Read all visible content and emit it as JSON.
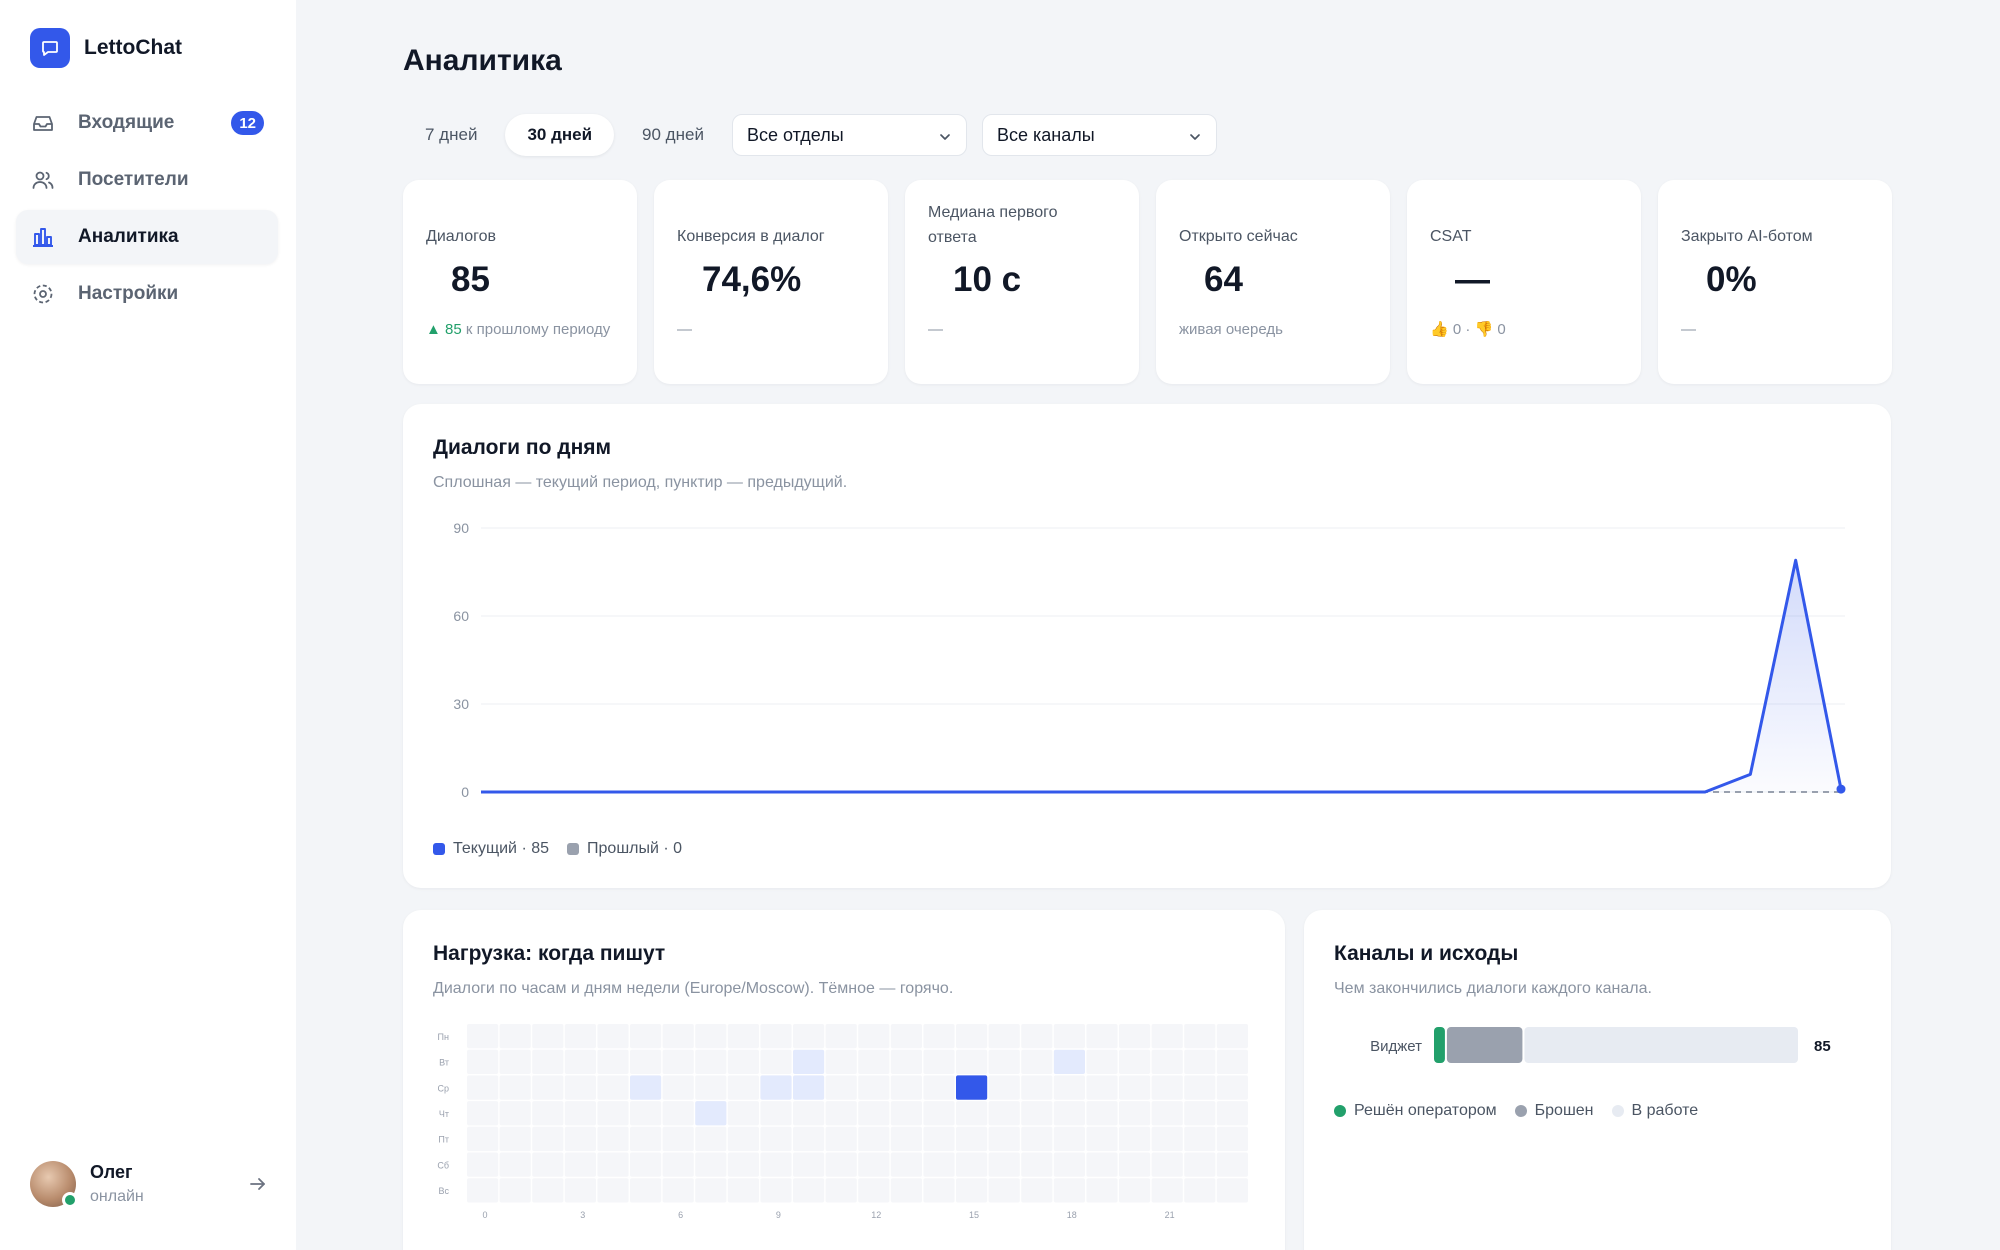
{
  "app": {
    "name": "LettoChat"
  },
  "nav": {
    "items": [
      {
        "label": "Входящие",
        "icon": "inbox-icon",
        "badge": "12"
      },
      {
        "label": "Посетители",
        "icon": "users-icon"
      },
      {
        "label": "Аналитика",
        "icon": "bar-chart-icon",
        "active": true
      },
      {
        "label": "Настройки",
        "icon": "gear-icon"
      }
    ]
  },
  "user": {
    "name": "Олег",
    "status": "онлайн"
  },
  "page": {
    "title": "Аналитика"
  },
  "filters": {
    "periods": [
      "7 дней",
      "30 дней",
      "90 дней"
    ],
    "active_period": "30 дней",
    "department": "Все отделы",
    "channel": "Все каналы"
  },
  "kpis": [
    {
      "label": "Диалогов",
      "value": "85",
      "note_up": "▲ 85",
      "note": " к прошлому периоду"
    },
    {
      "label": "Конверсия в диалог",
      "value": "74,6%",
      "note": "—"
    },
    {
      "label": "Медиана первого ответа",
      "value": "10 с",
      "note": "—"
    },
    {
      "label": "Открыто сейчас",
      "value": "64",
      "note": "живая очередь"
    },
    {
      "label": "CSAT",
      "value": "—",
      "note": "👍 0 · 👎 0"
    },
    {
      "label": "Закрыто AI-ботом",
      "value": "0%",
      "note": "—"
    }
  ],
  "daily": {
    "title": "Диалоги по дням",
    "subtitle": "Сплошная — текущий период, пунктир — предыдущий.",
    "legend_current": "Текущий · 85",
    "legend_previous": "Прошлый · 0"
  },
  "load": {
    "title": "Нагрузка: когда пишут",
    "subtitle": "Диалоги по часам и дням недели (Europe/Moscow). Тёмное — горячо."
  },
  "channels": {
    "title": "Каналы и исходы",
    "subtitle": "Чем закончились диалоги каждого канала.",
    "legend": [
      "Решён оператором",
      "Брошен",
      "В работе"
    ]
  },
  "colors": {
    "accent": "#3358ea",
    "success": "#22a06b",
    "abandoned": "#9aa1ae",
    "in_progress": "#e7ebf2"
  },
  "chart_data": [
    {
      "type": "line",
      "title": "Диалоги по дням",
      "ylim": [
        0,
        90
      ],
      "yticks": [
        "0",
        "30",
        "60",
        "90"
      ],
      "grid": true,
      "legend": "bottom-left",
      "series": [
        {
          "name": "Текущий · 85",
          "color": "#3358ea",
          "style": "solid",
          "values": [
            0,
            0,
            0,
            0,
            0,
            0,
            0,
            0,
            0,
            0,
            0,
            0,
            0,
            0,
            0,
            0,
            0,
            0,
            0,
            0,
            0,
            0,
            0,
            0,
            0,
            0,
            0,
            0,
            6,
            79,
            1
          ]
        },
        {
          "name": "Прошлый · 0",
          "color": "#9aa1ae",
          "style": "dashed",
          "values": [
            0,
            0,
            0,
            0,
            0,
            0,
            0,
            0,
            0,
            0,
            0,
            0,
            0,
            0,
            0,
            0,
            0,
            0,
            0,
            0,
            0,
            0,
            0,
            0,
            0,
            0,
            0,
            0,
            0,
            0,
            0
          ]
        }
      ]
    },
    {
      "type": "heatmap",
      "title": "Нагрузка: когда пишут",
      "rows": [
        "Пн",
        "Вт",
        "Ср",
        "Чт",
        "Пт",
        "Сб",
        "Вс"
      ],
      "columns": [
        0,
        1,
        2,
        3,
        4,
        5,
        6,
        7,
        8,
        9,
        10,
        11,
        12,
        13,
        14,
        15,
        16,
        17,
        18,
        19,
        20,
        21,
        22,
        23
      ],
      "xtick_labels": [
        "0",
        "3",
        "6",
        "9",
        "12",
        "15",
        "18",
        "21"
      ],
      "cells": [
        {
          "row": 1,
          "col": 10,
          "value": 1
        },
        {
          "row": 1,
          "col": 18,
          "value": 1
        },
        {
          "row": 2,
          "col": 5,
          "value": 1
        },
        {
          "row": 2,
          "col": 9,
          "value": 1
        },
        {
          "row": 2,
          "col": 10,
          "value": 1
        },
        {
          "row": 2,
          "col": 15,
          "value": 10
        },
        {
          "row": 3,
          "col": 7,
          "value": 1
        }
      ],
      "max": 10
    },
    {
      "type": "bar",
      "title": "Каналы и исходы",
      "orientation": "horizontal",
      "stacked": true,
      "categories": [
        "Виджет"
      ],
      "totals": [
        "85"
      ],
      "series": [
        {
          "name": "Решён оператором",
          "values": [
            3
          ]
        },
        {
          "name": "Брошен",
          "values": [
            18
          ]
        },
        {
          "name": "В работе",
          "values": [
            64
          ]
        }
      ]
    }
  ]
}
